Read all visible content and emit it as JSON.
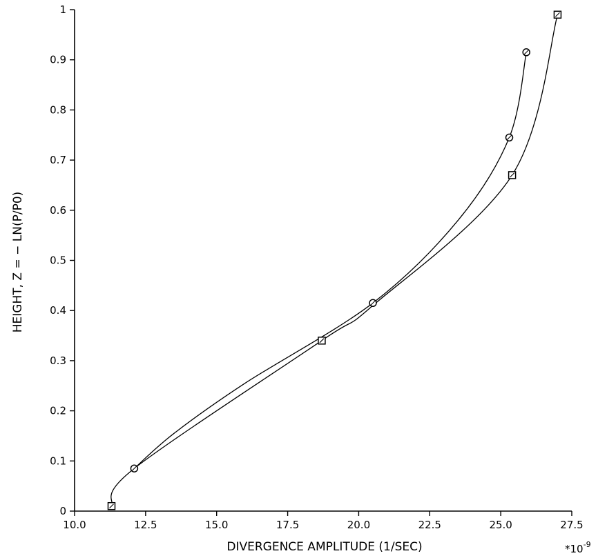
{
  "chart_data": {
    "type": "line",
    "xlabel": "DIVERGENCE AMPLITUDE (1/SEC)",
    "ylabel": "HEIGHT, Z = − LN(P/P0)",
    "x_multiplier_label": "*10",
    "x_multiplier_exponent": "-9",
    "xlim": [
      10.0,
      27.5
    ],
    "ylim": [
      0,
      1
    ],
    "x_ticks": [
      10.0,
      12.5,
      15.0,
      17.5,
      20.0,
      22.5,
      25.0,
      27.5
    ],
    "x_tick_labels": [
      "10.0",
      "12.5",
      "15.0",
      "17.5",
      "20.0",
      "22.5",
      "25.0",
      "27.5"
    ],
    "y_ticks": [
      0,
      0.1,
      0.2,
      0.3,
      0.4,
      0.5,
      0.6,
      0.7,
      0.8,
      0.9,
      1
    ],
    "y_tick_labels": [
      "0",
      "0.1",
      "0.2",
      "0.3",
      "0.4",
      "0.5",
      "0.6",
      "0.7",
      "0.8",
      "0.9",
      "1"
    ],
    "grid": false,
    "legend": "none",
    "series": [
      {
        "marker": "circle",
        "points": [
          {
            "x": 12.1,
            "y": 0.085,
            "marked": true
          },
          {
            "x": 13.5,
            "y": 0.155,
            "marked": false
          },
          {
            "x": 16.0,
            "y": 0.255,
            "marked": false
          },
          {
            "x": 20.5,
            "y": 0.415,
            "marked": true
          },
          {
            "x": 23.5,
            "y": 0.58,
            "marked": false
          },
          {
            "x": 25.3,
            "y": 0.745,
            "marked": true
          },
          {
            "x": 25.9,
            "y": 0.915,
            "marked": true
          }
        ]
      },
      {
        "marker": "square",
        "points": [
          {
            "x": 11.3,
            "y": 0.01,
            "marked": true
          },
          {
            "x": 12.1,
            "y": 0.085,
            "marked": false
          },
          {
            "x": 18.7,
            "y": 0.34,
            "marked": true
          },
          {
            "x": 20.5,
            "y": 0.41,
            "marked": false
          },
          {
            "x": 25.4,
            "y": 0.67,
            "marked": true
          },
          {
            "x": 27.0,
            "y": 0.99,
            "marked": true
          }
        ]
      }
    ]
  }
}
